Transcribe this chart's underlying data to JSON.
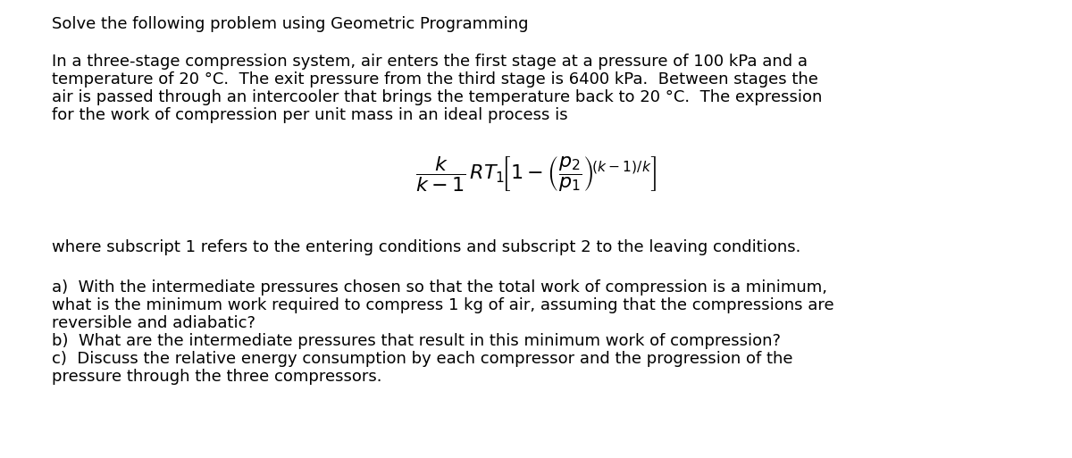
{
  "background_color": "#ffffff",
  "title_text": "Solve the following problem using Geometric Programming",
  "body_fontsize": 13.0,
  "text_color": "#000000",
  "paragraph1_line1": "In a three-stage compression system, air enters the first stage at a pressure of 100 kPa and a",
  "paragraph1_line2": "temperature of 20 °C.  The exit pressure from the third stage is 6400 kPa.  Between stages the",
  "paragraph1_line3": "air is passed through an intercooler that brings the temperature back to 20 °C.  The expression",
  "paragraph1_line4": "for the work of compression per unit mass in an ideal process is",
  "subscript_line": "where subscript 1 refers to the entering conditions and subscript 2 to the leaving conditions.",
  "part_a_line1": "a)  With the intermediate pressures chosen so that the total work of compression is a minimum,",
  "part_a_line2": "what is the minimum work required to compress 1 kg of air, assuming that the compressions are",
  "part_a_line3": "reversible and adiabatic?",
  "part_b": "b)  What are the intermediate pressures that result in this minimum work of compression?",
  "part_c_line1": "c)  Discuss the relative energy consumption by each compressor and the progression of the",
  "part_c_line2": "pressure through the three compressors."
}
